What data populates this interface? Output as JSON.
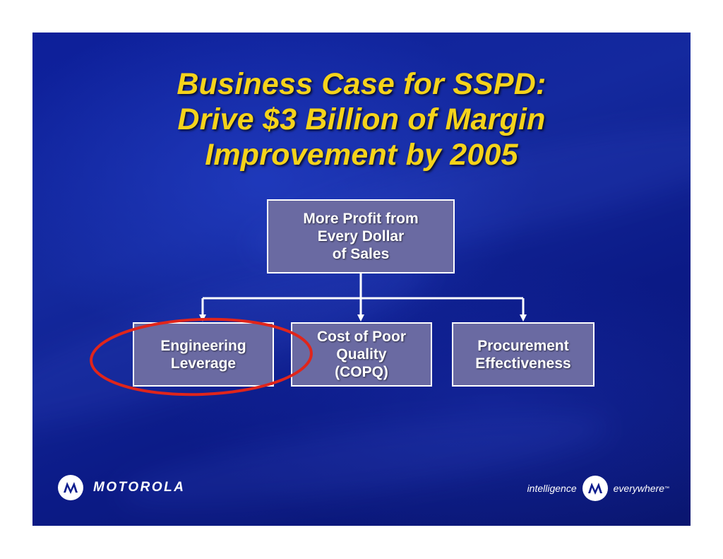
{
  "slide": {
    "title_lines": [
      "Business Case for SSPD:",
      "Drive $3 Billion of Margin",
      "Improvement by 2005"
    ]
  },
  "diagram": {
    "root": {
      "lines": [
        "More Profit from",
        "Every Dollar",
        "of Sales"
      ]
    },
    "children": [
      {
        "lines": [
          "Engineering",
          "Leverage"
        ],
        "highlighted": true
      },
      {
        "lines": [
          "Cost of Poor",
          "Quality",
          "(COPQ)"
        ]
      },
      {
        "lines": [
          "Procurement",
          "Effectiveness"
        ]
      }
    ],
    "colors": {
      "box_fill": "#6a6aa2",
      "box_border": "#ffffff",
      "connector": "#ffffff",
      "highlight_ring": "#e0251b",
      "title": "#f5d31b"
    }
  },
  "footer": {
    "brand": "MOTOROLA",
    "tagline_left": "intelligence",
    "tagline_right": "everywhere",
    "trademark": "™",
    "logo_icon": "motorola-batwing-icon"
  }
}
